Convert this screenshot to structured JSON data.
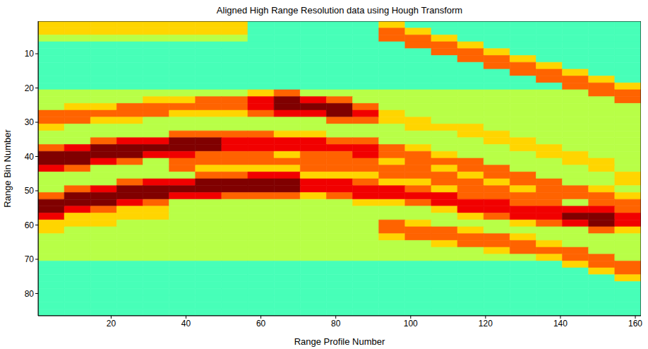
{
  "chart_data": {
    "type": "heatmap",
    "title": "Aligned High Range Resolution data using Hough Transform",
    "x_label": "Range Profile Number",
    "y_label": "Range Bin Number",
    "xlim": [
      0.5,
      161.5
    ],
    "xticks": [
      20,
      40,
      60,
      80,
      100,
      120,
      140,
      160
    ],
    "ylim": [
      86.5,
      0.5
    ],
    "yticks": [
      10,
      20,
      30,
      40,
      50,
      60,
      70,
      80
    ],
    "clim": [
      0,
      9
    ],
    "x_edges": [
      0.5,
      7.5,
      14.5,
      21.5,
      28.5,
      35.5,
      42.5,
      49.5,
      56.5,
      63.5,
      70.5,
      77.5,
      84.5,
      91.5,
      98.5,
      105.5,
      112.5,
      119.5,
      126.5,
      133.5,
      140.5,
      147.5,
      154.5,
      161.5
    ],
    "y_edges": [
      0.5,
      2.5,
      4.5,
      6.5,
      8.5,
      10.5,
      12.5,
      14.5,
      16.5,
      18.5,
      20.5,
      22.5,
      24.5,
      26.5,
      28.5,
      30.5,
      32.5,
      34.5,
      36.5,
      38.5,
      40.5,
      42.5,
      44.5,
      46.5,
      48.5,
      50.5,
      52.5,
      54.5,
      56.5,
      58.5,
      60.5,
      62.5,
      64.5,
      66.5,
      68.5,
      70.5,
      72.5,
      74.5,
      76.5,
      78.5,
      80.5,
      82.5,
      84.5,
      86.5
    ],
    "cells": [
      [
        6,
        6,
        6,
        6,
        6,
        6,
        6,
        6,
        4,
        4,
        4,
        4,
        4,
        6,
        4,
        4,
        4,
        4,
        4,
        4,
        4,
        4,
        4
      ],
      [
        6,
        6,
        6,
        6,
        6,
        6,
        6,
        6,
        4,
        4,
        4,
        4,
        4,
        7,
        6,
        4,
        4,
        4,
        4,
        4,
        4,
        4,
        4
      ],
      [
        5,
        5,
        5,
        5,
        5,
        5,
        5,
        5,
        4,
        4,
        4,
        4,
        4,
        7,
        7,
        6,
        4,
        4,
        4,
        4,
        4,
        4,
        4
      ],
      [
        4,
        4,
        4,
        4,
        4,
        4,
        4,
        4,
        4,
        4,
        4,
        4,
        4,
        4,
        7,
        7,
        6,
        4,
        4,
        4,
        4,
        4,
        4
      ],
      [
        4,
        4,
        4,
        4,
        4,
        4,
        4,
        4,
        4,
        4,
        4,
        4,
        4,
        4,
        4,
        7,
        7,
        6,
        4,
        4,
        4,
        4,
        4
      ],
      [
        4,
        4,
        4,
        4,
        4,
        4,
        4,
        4,
        4,
        4,
        4,
        4,
        4,
        4,
        4,
        4,
        7,
        7,
        6,
        4,
        4,
        4,
        4
      ],
      [
        4,
        4,
        4,
        4,
        4,
        4,
        4,
        4,
        4,
        4,
        4,
        4,
        4,
        4,
        4,
        4,
        4,
        7,
        7,
        6,
        4,
        4,
        4
      ],
      [
        4,
        4,
        4,
        4,
        4,
        4,
        4,
        4,
        4,
        4,
        4,
        4,
        4,
        4,
        4,
        4,
        4,
        4,
        7,
        7,
        6,
        4,
        4
      ],
      [
        4,
        4,
        4,
        4,
        4,
        4,
        4,
        4,
        4,
        4,
        4,
        4,
        4,
        4,
        4,
        4,
        4,
        4,
        4,
        7,
        7,
        6,
        4
      ],
      [
        4,
        4,
        4,
        4,
        4,
        4,
        4,
        4,
        4,
        4,
        4,
        4,
        4,
        4,
        4,
        4,
        4,
        4,
        4,
        4,
        7,
        7,
        6
      ],
      [
        5,
        5,
        5,
        5,
        5,
        5,
        5,
        5,
        6,
        7,
        5,
        5,
        5,
        5,
        5,
        5,
        5,
        5,
        5,
        5,
        5,
        7,
        7
      ],
      [
        5,
        5,
        5,
        5,
        6,
        6,
        7,
        7,
        8,
        9,
        8,
        7,
        5,
        5,
        5,
        5,
        5,
        5,
        5,
        5,
        5,
        5,
        7
      ],
      [
        5,
        6,
        6,
        7,
        7,
        7,
        7,
        7,
        8,
        9,
        9,
        9,
        7,
        5,
        5,
        5,
        5,
        5,
        5,
        5,
        5,
        5,
        5
      ],
      [
        7,
        7,
        7,
        7,
        7,
        6,
        6,
        6,
        7,
        8,
        8,
        9,
        8,
        6,
        5,
        5,
        5,
        5,
        5,
        5,
        5,
        5,
        5
      ],
      [
        7,
        7,
        6,
        6,
        5,
        5,
        5,
        5,
        5,
        5,
        5,
        7,
        7,
        6,
        6,
        5,
        5,
        5,
        5,
        5,
        5,
        5,
        5
      ],
      [
        6,
        5,
        5,
        5,
        5,
        5,
        5,
        5,
        5,
        5,
        5,
        5,
        5,
        5,
        6,
        6,
        6,
        5,
        5,
        5,
        5,
        5,
        5
      ],
      [
        5,
        5,
        5,
        5,
        5,
        7,
        7,
        7,
        7,
        6,
        6,
        5,
        5,
        5,
        5,
        5,
        6,
        6,
        5,
        5,
        5,
        5,
        5
      ],
      [
        5,
        5,
        7,
        8,
        8,
        9,
        9,
        8,
        8,
        8,
        8,
        7,
        7,
        5,
        5,
        5,
        5,
        6,
        6,
        5,
        5,
        5,
        5
      ],
      [
        7,
        8,
        9,
        9,
        9,
        9,
        9,
        8,
        8,
        8,
        8,
        8,
        8,
        7,
        6,
        5,
        5,
        5,
        6,
        6,
        5,
        5,
        5
      ],
      [
        9,
        9,
        9,
        9,
        8,
        8,
        7,
        7,
        7,
        6,
        7,
        7,
        8,
        7,
        7,
        6,
        5,
        5,
        5,
        6,
        6,
        5,
        5
      ],
      [
        9,
        9,
        8,
        7,
        5,
        7,
        7,
        7,
        7,
        7,
        7,
        7,
        7,
        6,
        7,
        7,
        7,
        5,
        5,
        5,
        6,
        6,
        5
      ],
      [
        8,
        7,
        5,
        5,
        5,
        7,
        6,
        6,
        6,
        6,
        7,
        7,
        7,
        7,
        7,
        6,
        7,
        7,
        5,
        5,
        5,
        6,
        5
      ],
      [
        5,
        5,
        5,
        5,
        5,
        5,
        7,
        7,
        8,
        8,
        6,
        6,
        6,
        7,
        7,
        7,
        6,
        7,
        7,
        5,
        5,
        5,
        6
      ],
      [
        5,
        5,
        5,
        7,
        8,
        8,
        9,
        9,
        9,
        9,
        8,
        8,
        7,
        6,
        6,
        7,
        7,
        6,
        7,
        7,
        5,
        5,
        6
      ],
      [
        5,
        7,
        8,
        9,
        9,
        9,
        9,
        9,
        9,
        9,
        8,
        8,
        8,
        8,
        7,
        6,
        7,
        7,
        6,
        7,
        7,
        6,
        5
      ],
      [
        7,
        9,
        9,
        9,
        9,
        8,
        8,
        7,
        7,
        7,
        6,
        7,
        8,
        8,
        8,
        8,
        7,
        7,
        7,
        7,
        7,
        7,
        6
      ],
      [
        9,
        9,
        9,
        8,
        7,
        5,
        5,
        5,
        5,
        5,
        5,
        5,
        6,
        6,
        7,
        8,
        8,
        8,
        7,
        7,
        5,
        7,
        7
      ],
      [
        9,
        8,
        7,
        6,
        6,
        5,
        5,
        5,
        5,
        5,
        5,
        5,
        5,
        5,
        5,
        6,
        8,
        8,
        8,
        8,
        8,
        8,
        7
      ],
      [
        8,
        6,
        6,
        6,
        6,
        5,
        5,
        5,
        5,
        5,
        5,
        5,
        5,
        5,
        5,
        5,
        6,
        7,
        8,
        8,
        9,
        9,
        8
      ],
      [
        6,
        6,
        6,
        5,
        5,
        5,
        5,
        5,
        5,
        5,
        5,
        5,
        5,
        7,
        6,
        5,
        5,
        5,
        6,
        7,
        8,
        9,
        8
      ],
      [
        6,
        5,
        5,
        5,
        5,
        5,
        5,
        5,
        5,
        5,
        5,
        5,
        5,
        7,
        7,
        7,
        6,
        5,
        5,
        5,
        5,
        7,
        6
      ],
      [
        5,
        5,
        5,
        5,
        5,
        5,
        5,
        5,
        5,
        5,
        5,
        5,
        5,
        6,
        7,
        7,
        7,
        7,
        6,
        5,
        5,
        5,
        5
      ],
      [
        5,
        5,
        5,
        5,
        5,
        5,
        5,
        5,
        5,
        5,
        5,
        5,
        5,
        5,
        5,
        6,
        7,
        7,
        7,
        6,
        5,
        5,
        5
      ],
      [
        5,
        5,
        5,
        5,
        5,
        5,
        5,
        5,
        5,
        5,
        5,
        5,
        5,
        5,
        5,
        5,
        5,
        6,
        7,
        7,
        7,
        5,
        5
      ],
      [
        5,
        5,
        5,
        5,
        5,
        5,
        5,
        5,
        5,
        5,
        5,
        5,
        5,
        5,
        5,
        5,
        5,
        5,
        5,
        6,
        7,
        7,
        5
      ],
      [
        4,
        4,
        4,
        4,
        4,
        4,
        4,
        4,
        4,
        4,
        4,
        4,
        4,
        4,
        4,
        4,
        4,
        4,
        4,
        4,
        6,
        7,
        7
      ],
      [
        4,
        4,
        4,
        4,
        4,
        4,
        4,
        4,
        4,
        4,
        4,
        4,
        4,
        4,
        4,
        4,
        4,
        4,
        4,
        4,
        4,
        6,
        7
      ],
      [
        4,
        4,
        4,
        4,
        4,
        4,
        4,
        4,
        4,
        4,
        4,
        4,
        4,
        4,
        4,
        4,
        4,
        4,
        4,
        4,
        4,
        4,
        6
      ],
      [
        4,
        4,
        4,
        4,
        4,
        4,
        4,
        4,
        4,
        4,
        4,
        4,
        4,
        4,
        4,
        4,
        4,
        4,
        4,
        4,
        4,
        4,
        4
      ],
      [
        4,
        4,
        4,
        4,
        4,
        4,
        4,
        4,
        4,
        4,
        4,
        4,
        4,
        4,
        4,
        4,
        4,
        4,
        4,
        4,
        4,
        4,
        4
      ],
      [
        4,
        4,
        4,
        4,
        4,
        4,
        4,
        4,
        4,
        4,
        4,
        4,
        4,
        4,
        4,
        4,
        4,
        4,
        4,
        4,
        4,
        4,
        4
      ],
      [
        4,
        4,
        4,
        4,
        4,
        4,
        4,
        4,
        4,
        4,
        4,
        4,
        4,
        4,
        4,
        4,
        4,
        4,
        4,
        4,
        4,
        4,
        4
      ],
      [
        4,
        4,
        4,
        4,
        4,
        4,
        4,
        4,
        4,
        4,
        4,
        4,
        4,
        4,
        4,
        4,
        4,
        4,
        4,
        4,
        4,
        4,
        4
      ]
    ]
  }
}
